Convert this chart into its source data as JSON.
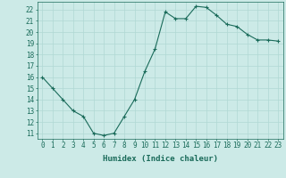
{
  "x": [
    0,
    1,
    2,
    3,
    4,
    5,
    6,
    7,
    8,
    9,
    10,
    11,
    12,
    13,
    14,
    15,
    16,
    17,
    18,
    19,
    20,
    21,
    22,
    23
  ],
  "y": [
    16,
    15,
    14,
    13,
    12.5,
    11,
    10.8,
    11,
    12.5,
    14,
    16.5,
    18.5,
    21.8,
    21.2,
    21.2,
    22.3,
    22.2,
    21.5,
    20.7,
    20.5,
    19.8,
    19.3,
    19.3,
    19.2
  ],
  "line_color": "#1a6b5a",
  "marker": "+",
  "marker_size": 3,
  "marker_linewidth": 0.8,
  "line_width": 0.8,
  "bg_color": "#cceae7",
  "grid_color": "#b0d8d4",
  "xlabel": "Humidex (Indice chaleur)",
  "ylim": [
    10.5,
    22.7
  ],
  "xlim": [
    -0.5,
    23.5
  ],
  "yticks": [
    11,
    12,
    13,
    14,
    15,
    16,
    17,
    18,
    19,
    20,
    21,
    22
  ],
  "xticks": [
    0,
    1,
    2,
    3,
    4,
    5,
    6,
    7,
    8,
    9,
    10,
    11,
    12,
    13,
    14,
    15,
    16,
    17,
    18,
    19,
    20,
    21,
    22,
    23
  ],
  "tick_color": "#1a6b5a",
  "label_fontsize": 5.5,
  "xlabel_fontsize": 6.5
}
